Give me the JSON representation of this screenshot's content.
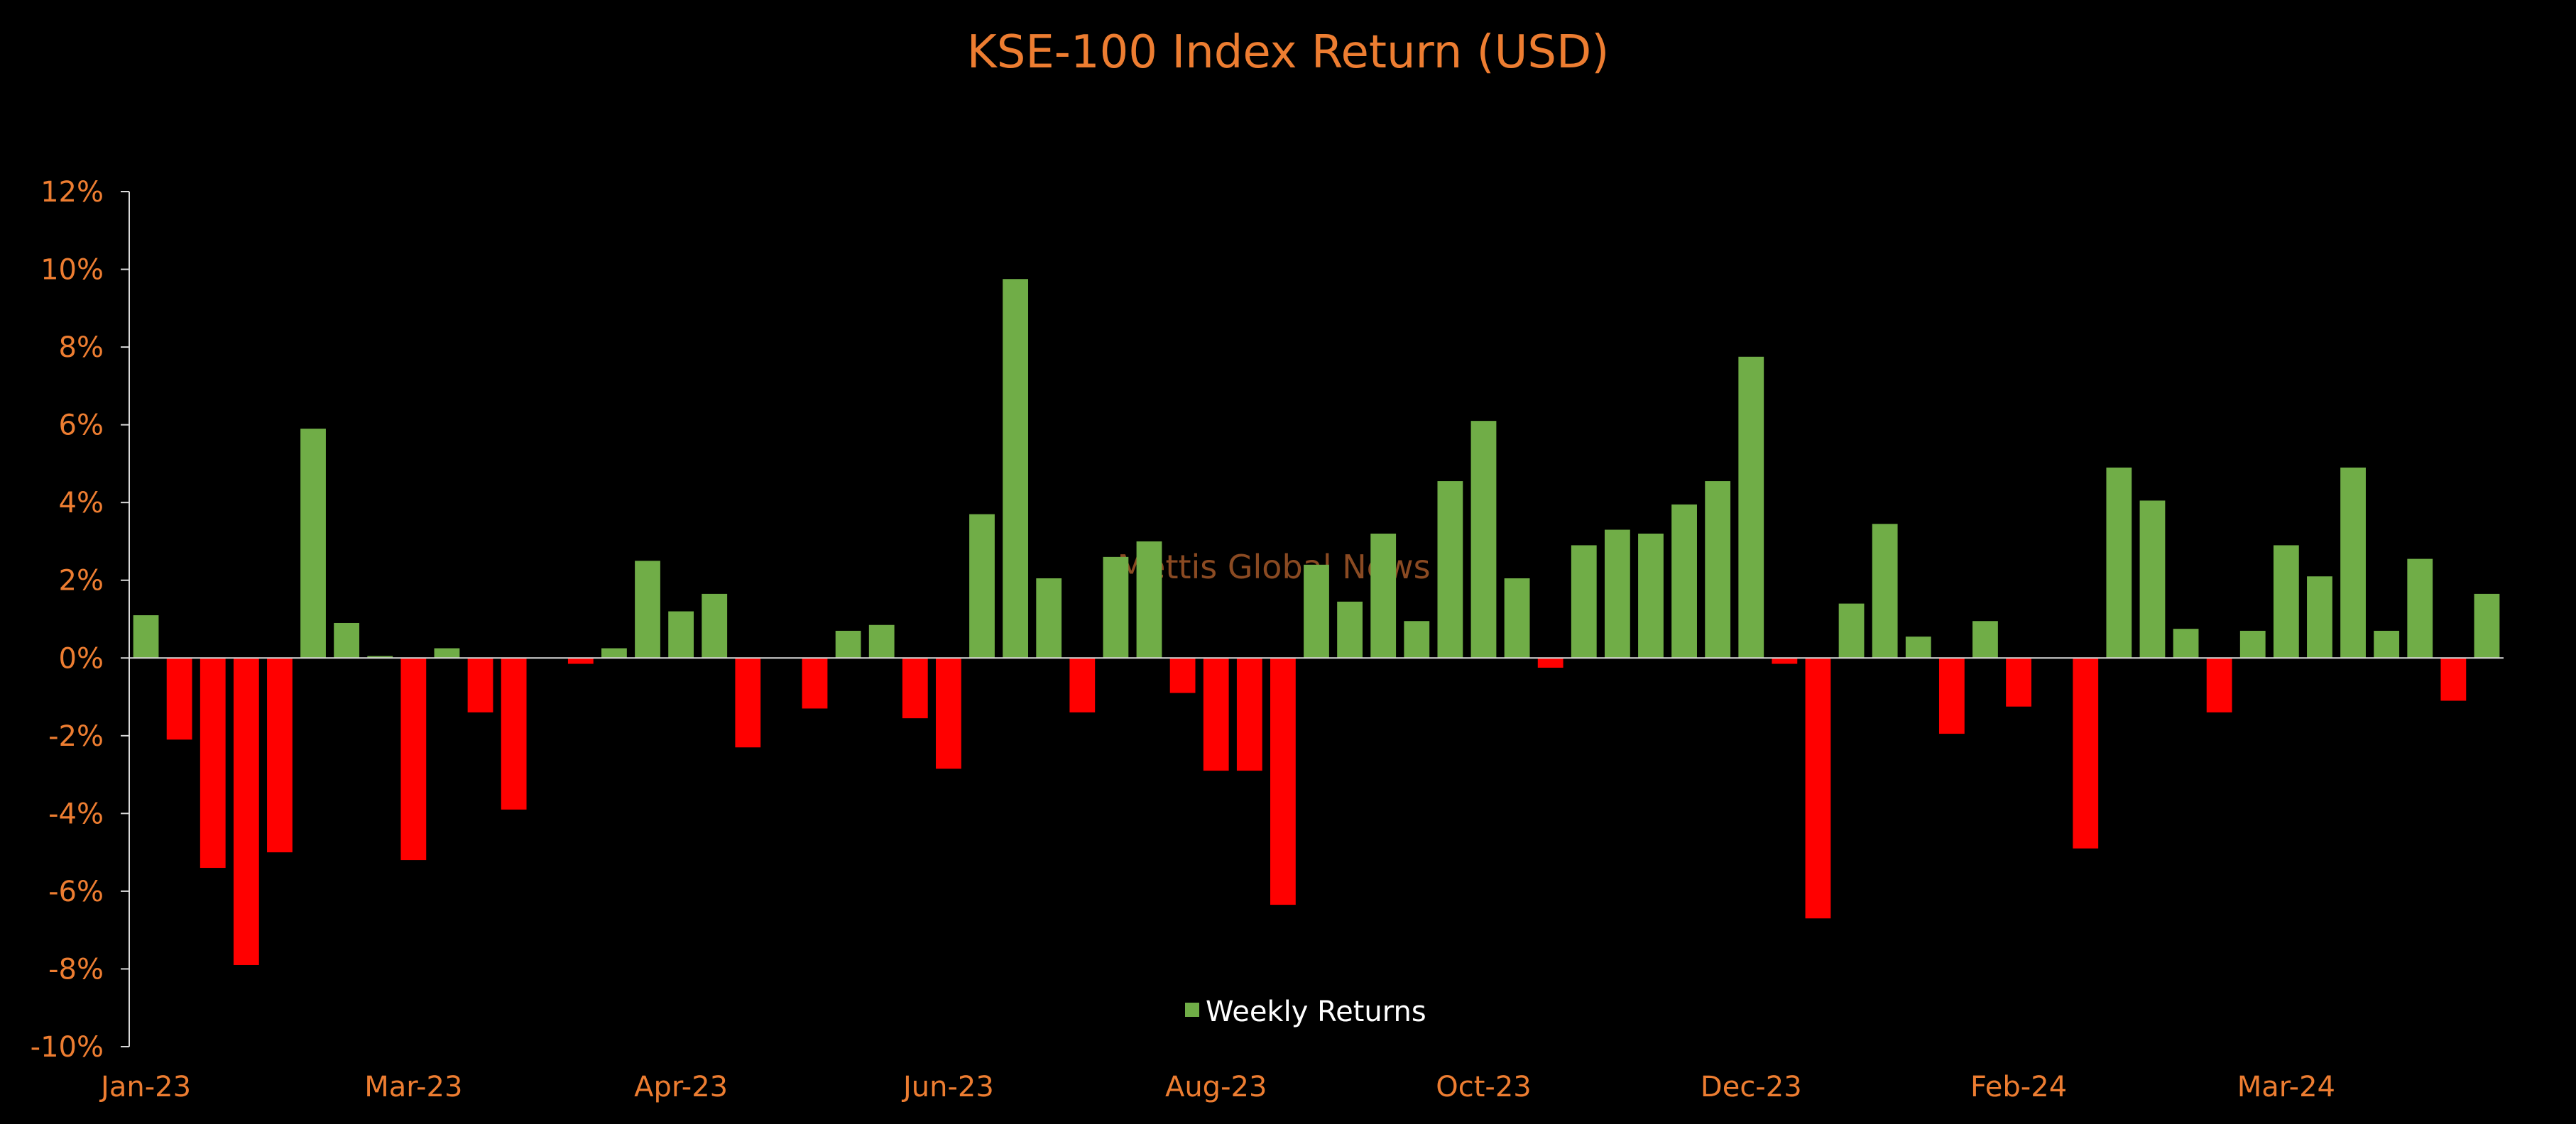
{
  "chart_data": {
    "type": "bar",
    "title": "KSE-100 Index Return (USD)",
    "watermark": "Mettis Global News",
    "ylim": [
      -10,
      12
    ],
    "y_ticks": [
      12,
      10,
      8,
      6,
      4,
      2,
      0,
      -2,
      -4,
      -6,
      -8,
      -10
    ],
    "y_tick_labels": [
      "12%",
      "10%",
      "8%",
      "6%",
      "4%",
      "2%",
      "0%",
      "-2%",
      "-4%",
      "-6%",
      "-8%",
      "-10%"
    ],
    "x_tick_labels": [
      "Jan-23",
      "Mar-23",
      "Apr-23",
      "Jun-23",
      "Aug-23",
      "Oct-23",
      "Dec-23",
      "Feb-24",
      "Mar-24"
    ],
    "x_tick_bar_index": [
      0,
      8,
      16,
      24,
      32,
      40,
      48,
      56,
      64
    ],
    "legend": {
      "position": "bottom-center",
      "entries": [
        "Weekly Returns"
      ]
    },
    "colors": {
      "positive": "#70AD47",
      "negative": "#FF0000",
      "text": "#ED7D31",
      "axis": "#D9D9D9",
      "legend_text": "#FFFFFF",
      "watermark": "#8A4A22",
      "background": "#000000"
    },
    "series": [
      {
        "name": "Weekly Returns",
        "values": [
          1.1,
          -2.1,
          -5.4,
          -7.9,
          -5.0,
          5.9,
          0.9,
          0.05,
          -5.2,
          0.25,
          -1.4,
          -3.9,
          0.0,
          -0.15,
          0.25,
          2.5,
          1.2,
          1.65,
          -2.3,
          0.0,
          -1.3,
          0.7,
          0.85,
          -1.55,
          -2.85,
          3.7,
          9.75,
          2.05,
          -1.4,
          2.6,
          3.0,
          -0.9,
          -2.9,
          -2.9,
          -6.35,
          2.4,
          1.45,
          3.2,
          0.95,
          4.55,
          6.1,
          2.05,
          -0.25,
          2.9,
          3.3,
          3.2,
          3.95,
          4.55,
          7.75,
          -0.15,
          -6.7,
          1.4,
          3.45,
          0.55,
          -1.95,
          0.95,
          -1.25,
          0.0,
          -4.9,
          4.9,
          4.05,
          0.75,
          -1.4,
          0.7,
          2.9,
          2.1,
          4.9,
          0.7,
          2.55,
          -1.1,
          1.65
        ]
      }
    ]
  }
}
